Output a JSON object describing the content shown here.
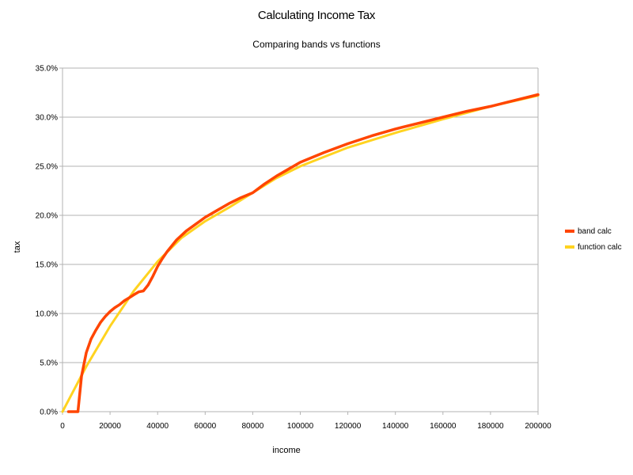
{
  "chart_data": {
    "type": "line",
    "title": "Calculating Income Tax",
    "subtitle": "Comparing bands vs functions",
    "xlabel": "income",
    "ylabel": "tax",
    "xlim": [
      0,
      200000
    ],
    "ylim": [
      0,
      35
    ],
    "x_ticks": [
      "0",
      "20000",
      "40000",
      "60000",
      "80000",
      "100000",
      "120000",
      "140000",
      "160000",
      "180000",
      "200000"
    ],
    "y_ticks": [
      "0.0%",
      "5.0%",
      "10.0%",
      "15.0%",
      "20.0%",
      "25.0%",
      "30.0%",
      "35.0%"
    ],
    "grid": "horizontal",
    "legend_position": "right",
    "series": [
      {
        "name": "band calc",
        "color": "#ff4500",
        "points": [
          [
            2500,
            0
          ],
          [
            6500,
            0
          ],
          [
            8000,
            3.6
          ],
          [
            10000,
            6.0
          ],
          [
            12000,
            7.4
          ],
          [
            14000,
            8.3
          ],
          [
            16000,
            9.1
          ],
          [
            18000,
            9.7
          ],
          [
            20000,
            10.2
          ],
          [
            22000,
            10.6
          ],
          [
            24000,
            10.9
          ],
          [
            26000,
            11.3
          ],
          [
            28000,
            11.6
          ],
          [
            30000,
            11.9
          ],
          [
            32000,
            12.2
          ],
          [
            34000,
            12.3
          ],
          [
            36000,
            12.9
          ],
          [
            38000,
            13.8
          ],
          [
            40000,
            14.8
          ],
          [
            42000,
            15.6
          ],
          [
            44000,
            16.3
          ],
          [
            48000,
            17.5
          ],
          [
            52000,
            18.4
          ],
          [
            56000,
            19.1
          ],
          [
            60000,
            19.8
          ],
          [
            65000,
            20.5
          ],
          [
            70000,
            21.2
          ],
          [
            75000,
            21.8
          ],
          [
            80000,
            22.3
          ],
          [
            85000,
            23.2
          ],
          [
            90000,
            24.0
          ],
          [
            95000,
            24.7
          ],
          [
            100000,
            25.4
          ],
          [
            110000,
            26.4
          ],
          [
            120000,
            27.3
          ],
          [
            130000,
            28.1
          ],
          [
            140000,
            28.8
          ],
          [
            150000,
            29.4
          ],
          [
            160000,
            30.0
          ],
          [
            170000,
            30.6
          ],
          [
            180000,
            31.1
          ],
          [
            190000,
            31.7
          ],
          [
            200000,
            32.3
          ]
        ]
      },
      {
        "name": "function calc",
        "color": "#ffd320",
        "points": [
          [
            0,
            0
          ],
          [
            10000,
            4.6
          ],
          [
            20000,
            8.7
          ],
          [
            30000,
            12.3
          ],
          [
            40000,
            15.3
          ],
          [
            50000,
            17.7
          ],
          [
            60000,
            19.4
          ],
          [
            70000,
            20.8
          ],
          [
            80000,
            22.3
          ],
          [
            90000,
            23.8
          ],
          [
            100000,
            25.0
          ],
          [
            120000,
            26.9
          ],
          [
            140000,
            28.4
          ],
          [
            160000,
            29.8
          ],
          [
            180000,
            31.1
          ],
          [
            200000,
            32.2
          ]
        ]
      }
    ]
  }
}
